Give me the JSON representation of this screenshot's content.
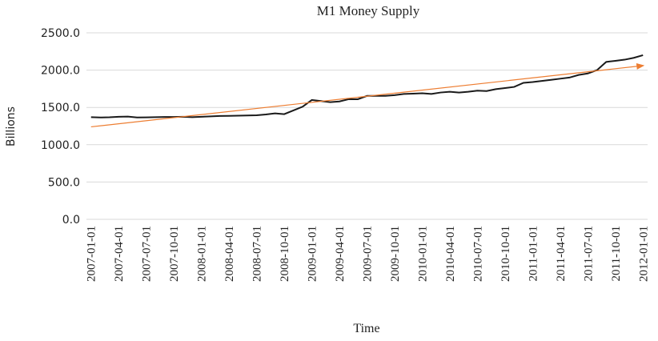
{
  "chart_data": {
    "type": "line",
    "title": "M1 Money Supply",
    "x_label": "Time",
    "y_label": "Billions",
    "categories": [
      "2007-01-01",
      null,
      null,
      "2007-04-01",
      null,
      null,
      "2007-07-01",
      null,
      null,
      "2007-10-01",
      null,
      null,
      "2008-01-01",
      null,
      null,
      "2008-04-01",
      null,
      null,
      "2008-07-01",
      null,
      null,
      "2008-10-01",
      null,
      null,
      "2009-01-01",
      null,
      null,
      "2009-04-01",
      null,
      null,
      "2009-07-01",
      null,
      null,
      "2009-10-01",
      null,
      null,
      "2010-01-01",
      null,
      null,
      "2010-04-01",
      null,
      null,
      "2010-07-01",
      null,
      null,
      "2010-10-01",
      null,
      null,
      "2011-01-01",
      null,
      null,
      "2011-04-01",
      null,
      null,
      "2011-07-01",
      null,
      null,
      "2011-10-01",
      null,
      null,
      "2012-01-01"
    ],
    "series": [
      {
        "color": "#1a1a1a",
        "values": [
          1370,
          1365,
          1368,
          1375,
          1378,
          1365,
          1367,
          1370,
          1372,
          1372,
          1375,
          1370,
          1375,
          1380,
          1385,
          1387,
          1390,
          1392,
          1395,
          1405,
          1420,
          1410,
          1460,
          1510,
          1600,
          1585,
          1570,
          1580,
          1610,
          1610,
          1655,
          1655,
          1655,
          1665,
          1680,
          1685,
          1690,
          1680,
          1700,
          1710,
          1700,
          1710,
          1725,
          1720,
          1745,
          1760,
          1775,
          1830,
          1840,
          1855,
          1870,
          1885,
          1900,
          1935,
          1955,
          2000,
          2110,
          2125,
          2140,
          2165,
          2200
        ]
      }
    ],
    "trendline": {
      "color": "#ed7d31",
      "values": [
        1240,
        2060
      ]
    },
    "ylim": [
      0,
      2500
    ],
    "yticks": [
      {
        "value": 0,
        "label": "0.0"
      },
      {
        "value": 500,
        "label": "500.0"
      },
      {
        "value": 1000,
        "label": "1000.0"
      },
      {
        "value": 1500,
        "label": "1500.0"
      },
      {
        "value": 2000,
        "label": "2000.0"
      },
      {
        "value": 2500,
        "label": "2500.0"
      }
    ],
    "grid": true
  }
}
